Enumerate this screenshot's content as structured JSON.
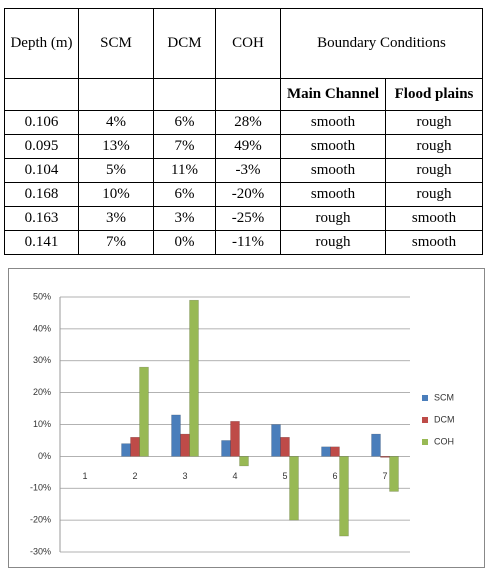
{
  "table": {
    "header": [
      "Depth (m)",
      "SCM",
      "DCM",
      "COH"
    ],
    "group_header": "Boundary Conditions",
    "subheaders": [
      "Main Channel",
      "Flood plains"
    ],
    "rows": [
      [
        "0.106",
        "4%",
        "6%",
        "28%",
        "smooth",
        "rough"
      ],
      [
        "0.095",
        "13%",
        "7%",
        "49%",
        "smooth",
        "rough"
      ],
      [
        "0.104",
        "5%",
        "11%",
        "-3%",
        "smooth",
        "rough"
      ],
      [
        "0.168",
        "10%",
        "6%",
        "-20%",
        "smooth",
        "rough"
      ],
      [
        "0.163",
        "3%",
        "3%",
        "-25%",
        "rough",
        "smooth"
      ],
      [
        "0.141",
        "7%",
        "0%",
        "-11%",
        "rough",
        "smooth"
      ]
    ]
  },
  "chart_data": {
    "type": "bar",
    "categories": [
      "1",
      "2",
      "3",
      "4",
      "5",
      "6",
      "7"
    ],
    "series": [
      {
        "name": "SCM",
        "color": "#4a7ebb",
        "values": [
          null,
          4,
          13,
          5,
          10,
          3,
          7
        ]
      },
      {
        "name": "DCM",
        "color": "#be4b48",
        "values": [
          null,
          6,
          7,
          11,
          6,
          3,
          0
        ]
      },
      {
        "name": "COH",
        "color": "#98b954",
        "values": [
          null,
          28,
          49,
          -3,
          -20,
          -25,
          -11
        ]
      }
    ],
    "ylim": [
      -30,
      50
    ],
    "yticks": [
      {
        "value": -30,
        "label": "-30%"
      },
      {
        "value": -20,
        "label": "-20%"
      },
      {
        "value": -10,
        "label": "-10%"
      },
      {
        "value": 0,
        "label": "0%"
      },
      {
        "value": 10,
        "label": "10%"
      },
      {
        "value": 20,
        "label": "20%"
      },
      {
        "value": 30,
        "label": "30%"
      },
      {
        "value": 40,
        "label": "40%"
      },
      {
        "value": 50,
        "label": "50%"
      }
    ],
    "grid": true,
    "legend": "right"
  }
}
